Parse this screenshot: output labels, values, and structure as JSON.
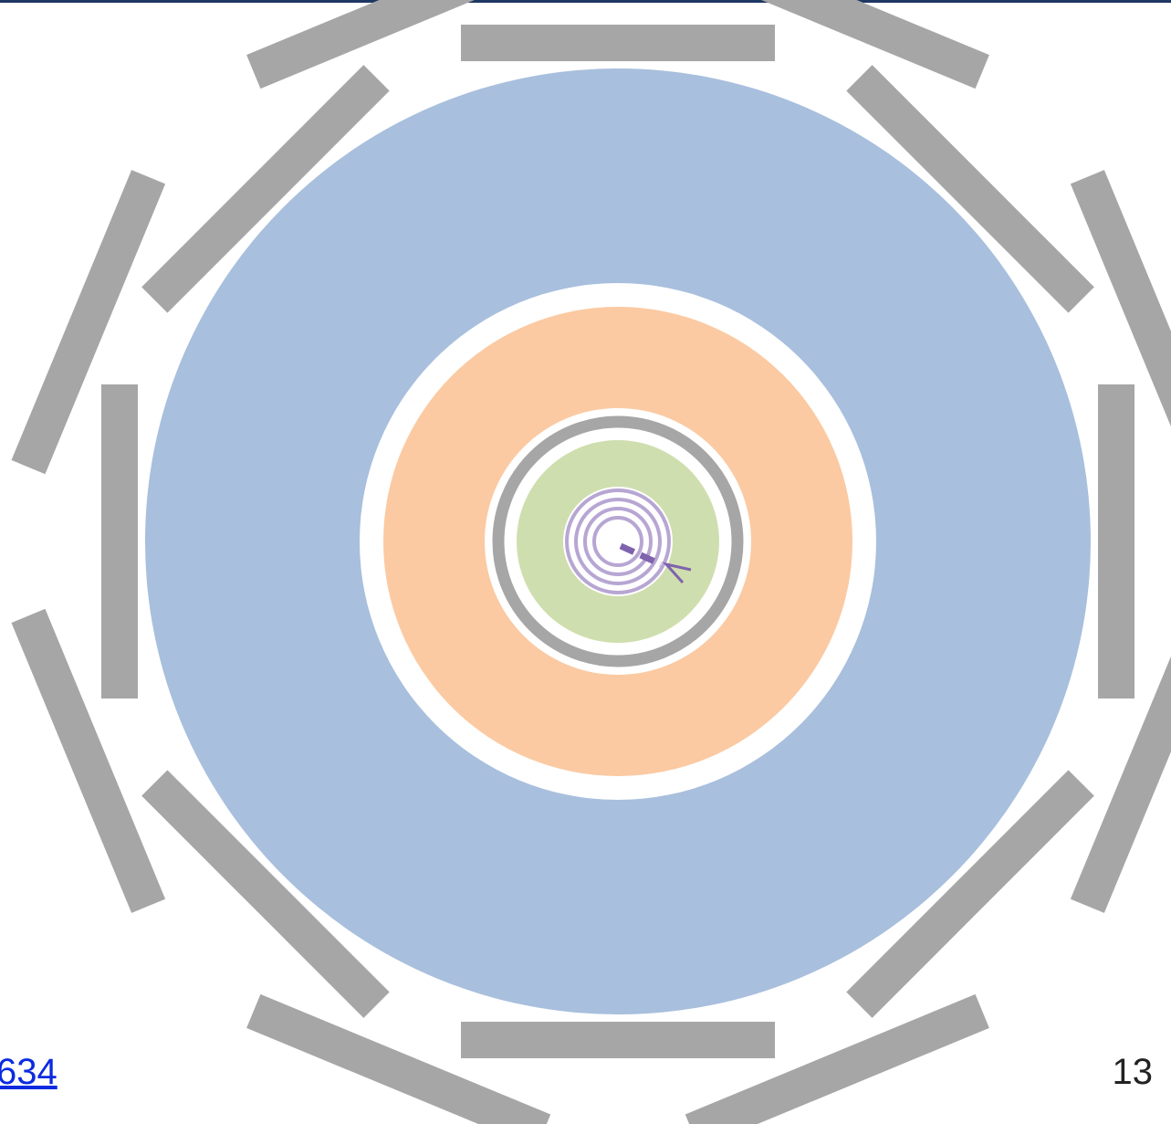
{
  "link_text": "634",
  "page_number": "13"
}
